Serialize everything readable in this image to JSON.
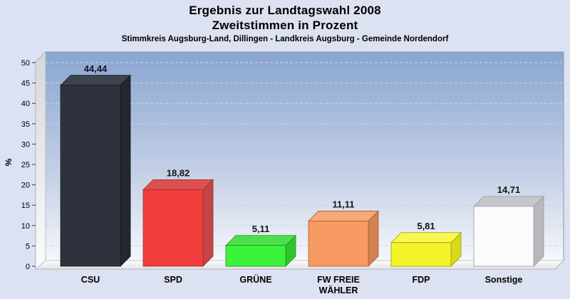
{
  "title": {
    "line1": "Ergebnis zur Landtagswahl 2008",
    "line2": "Zweitstimmen in Prozent",
    "caption": "Stimmkreis Augsburg-Land, Dillingen - Landkreis Augsburg - Gemeinde Nordendorf"
  },
  "chart_data": {
    "type": "bar",
    "style": "3d-column",
    "title": "Ergebnis zur Landtagswahl 2008",
    "subtitle": "Zweitstimmen in Prozent",
    "caption": "Stimmkreis Augsburg-Land, Dillingen - Landkreis Augsburg - Gemeinde Nordendorf",
    "ylabel": "%",
    "ylim": [
      0,
      50
    ],
    "ytick_step": 5,
    "grid": "horizontal-dashed",
    "legend": "none",
    "categories": [
      "CSU",
      "SPD",
      "GRÜNE",
      "FW FREIE WÄHLER",
      "FDP",
      "Sonstige"
    ],
    "category_lines": [
      [
        "CSU"
      ],
      [
        "SPD"
      ],
      [
        "GRÜNE"
      ],
      [
        "FW FREIE",
        "WÄHLER"
      ],
      [
        "FDP"
      ],
      [
        "Sonstige"
      ]
    ],
    "values": [
      44.44,
      18.82,
      5.11,
      11.11,
      5.81,
      14.71
    ],
    "value_labels": [
      "44,44",
      "18,82",
      "5,11",
      "11,11",
      "5,81",
      "14,71"
    ],
    "bars": [
      {
        "party": "CSU",
        "front": "#2d323c",
        "top": "#3d434f",
        "side": "#23272f",
        "edge": "#15181e"
      },
      {
        "party": "SPD",
        "front": "#f23c3c",
        "top": "#de5050",
        "side": "#c34545",
        "edge": "#932f2f"
      },
      {
        "party": "GRÜNE",
        "front": "#3bf33b",
        "top": "#4de04d",
        "side": "#2ec42e",
        "edge": "#1f8f1f"
      },
      {
        "party": "FW",
        "front": "#f89a63",
        "top": "#f9a877",
        "side": "#d2814f",
        "edge": "#a2603b"
      },
      {
        "party": "FDP",
        "front": "#f4f428",
        "top": "#f8f851",
        "side": "#d9d91c",
        "edge": "#9c9c10"
      },
      {
        "party": "Sonstige",
        "front": "#fbfbfd",
        "top": "#c7c7cb",
        "side": "#b9b9bd",
        "edge": "#97979d"
      }
    ],
    "colors": {
      "page_bg": "#dce2f1",
      "plot_top": "#89a5d0",
      "plot_mid": "#c3cfe6",
      "plot_bottom": "#fafbfd",
      "wall_top": "#d6d7da",
      "wall_bottom": "#fbfbfc",
      "floor_top": "#fdfdfe",
      "floor_bottom": "#e2e3e6",
      "grid": "#ccd3dc",
      "panel_border": "#8f96a8",
      "tick": "#3a3a3a",
      "text": "#000000",
      "value_label": "#141414"
    }
  }
}
